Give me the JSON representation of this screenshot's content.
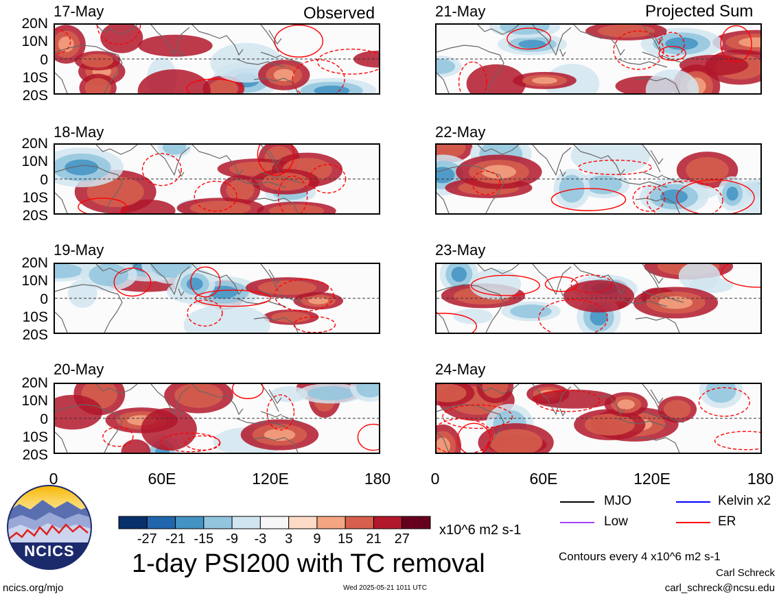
{
  "header": {
    "left_title": "Observed",
    "right_title": "Projected Sum"
  },
  "panels": {
    "observed": [
      {
        "date": "17-May"
      },
      {
        "date": "18-May"
      },
      {
        "date": "19-May"
      },
      {
        "date": "20-May"
      }
    ],
    "projected": [
      {
        "date": "21-May"
      },
      {
        "date": "22-May"
      },
      {
        "date": "23-May"
      },
      {
        "date": "24-May"
      }
    ]
  },
  "lat_labels": [
    "20N",
    "10N",
    "0",
    "10S",
    "20S"
  ],
  "lon_labels": [
    "0",
    "60E",
    "120E",
    "180"
  ],
  "colorbar": {
    "colors": [
      "#08306b",
      "#2166ac",
      "#4393c3",
      "#92c5de",
      "#d1e5f0",
      "#f7f7f7",
      "#fddbc7",
      "#f4a582",
      "#d6604d",
      "#b2182b",
      "#67001f"
    ],
    "tick_labels": [
      "-27",
      "-21",
      "-15",
      "-9",
      "-3",
      "3",
      "9",
      "15",
      "21",
      "27"
    ],
    "units": "x10^6 m2 s-1"
  },
  "title": "1-day PSI200 with TC removal",
  "legend": [
    {
      "label": "MJO",
      "color": "#000000"
    },
    {
      "label": "Kelvin x2",
      "color": "#0000ff"
    },
    {
      "label": "Low",
      "color": "#a040ff"
    },
    {
      "label": "ER",
      "color": "#ff0000"
    }
  ],
  "contour_note": "Contours every 4 x10^6 m2 s-1",
  "credits": {
    "author": "Carl Schreck",
    "email": "carl_schreck@ncsu.edu"
  },
  "footer": {
    "url": "ncics.org/mjo",
    "timestamp": "Wed 2025-05-21 1011 UTC"
  },
  "logo": {
    "text": "NCICS"
  }
}
